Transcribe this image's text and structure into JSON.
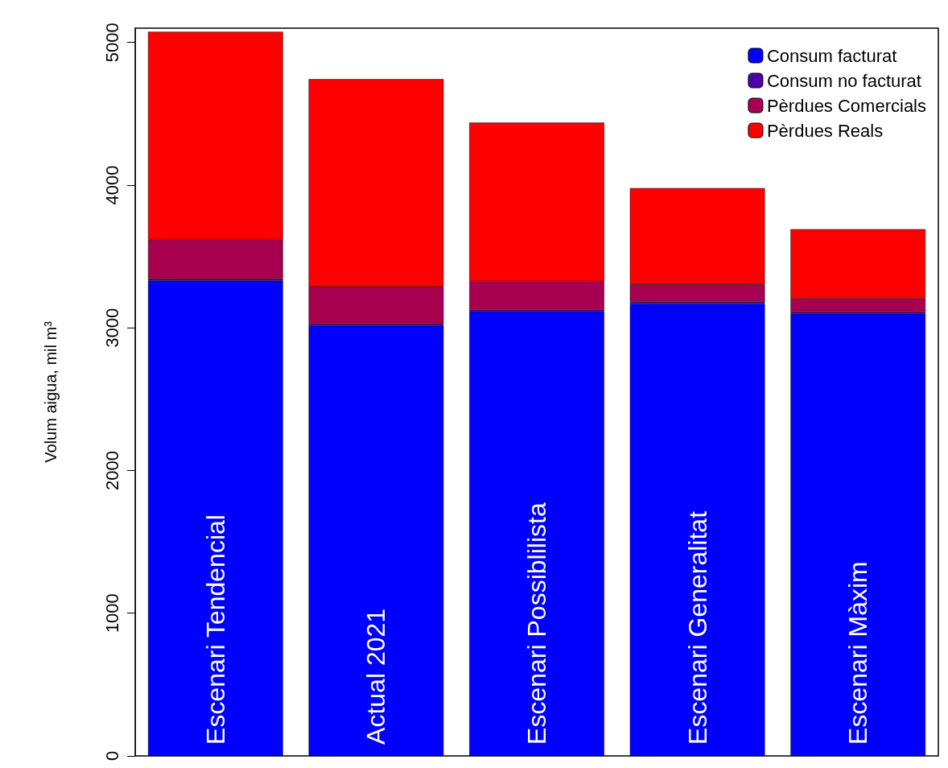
{
  "chart_data": {
    "type": "bar",
    "stacked": true,
    "ylabel": "Volum aigua, mil m³",
    "categories": [
      "Escenari Tendencial",
      "Actual 2021",
      "Escenari Possiblilista",
      "Escenari Generalitat",
      "Escenari Màxim"
    ],
    "series": [
      {
        "name": "Consum facturat",
        "color": "#0000ff",
        "values": [
          3331,
          3016,
          3116,
          3171,
          3099
        ]
      },
      {
        "name": "Consum no facturat",
        "color": "#5000a8",
        "values": [
          10,
          10,
          10,
          10,
          10
        ]
      },
      {
        "name": "Pèrdues Comercials",
        "color": "#a80050",
        "values": [
          278,
          261,
          200,
          123,
          95
        ]
      },
      {
        "name": "Pèrdues Reals",
        "color": "#ff0000",
        "values": [
          1456,
          1456,
          1112,
          675,
          487
        ]
      }
    ],
    "ylim": [
      0,
      5100
    ],
    "yticks": [
      0,
      1000,
      2000,
      3000,
      4000,
      5000
    ],
    "grid": false,
    "legend": "top right"
  }
}
